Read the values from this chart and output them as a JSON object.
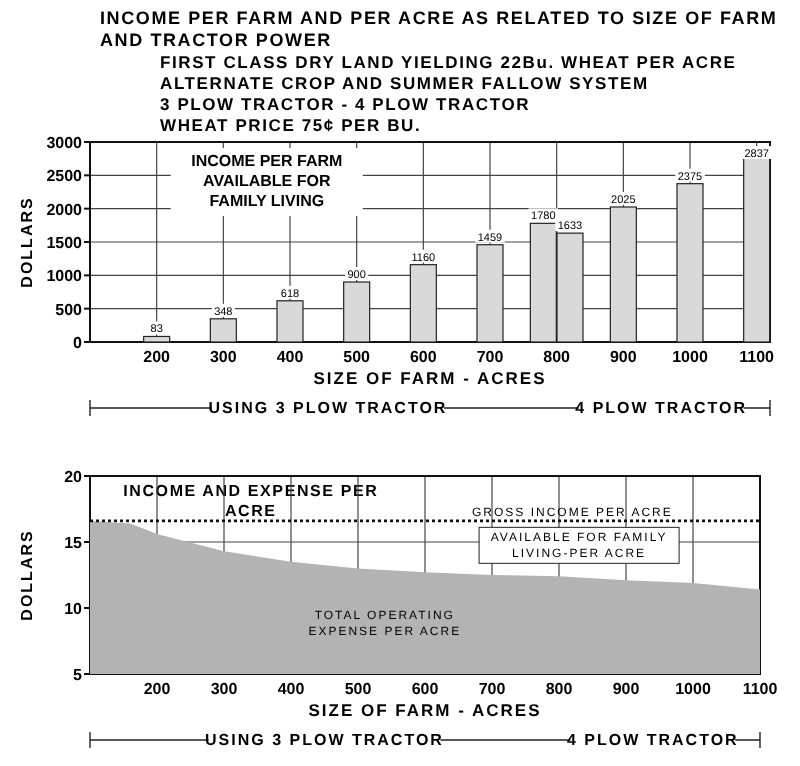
{
  "chart_data": [
    {
      "type": "bar",
      "title": "INCOME PER FARM AND PER ACRE AS RELATED TO SIZE OF FARM AND TRACTOR POWER",
      "subtitle": "FIRST CLASS DRY LAND  YIELDING 22Bu. WHEAT PER ACRE\nALTERNATE CROP AND SUMMER FALLOW SYSTEM\n3 PLOW TRACTOR - 4 PLOW TRACTOR\nWHEAT PRICE 75¢ PER BU.",
      "xlabel": "SIZE OF FARM - ACRES",
      "ylabel": "DOLLARS",
      "x": [
        200,
        300,
        400,
        500,
        600,
        700,
        780,
        820,
        900,
        1000,
        1100
      ],
      "series": [
        {
          "color": "#d9d9d9",
          "values": [
            83,
            348,
            618,
            900,
            1160,
            1459,
            1780,
            1633,
            2025,
            2375,
            2837
          ]
        }
      ],
      "data_labels": true,
      "xlim": [
        100,
        1120
      ],
      "xticks": [
        200,
        300,
        400,
        500,
        600,
        700,
        800,
        900,
        1000,
        1100
      ],
      "ylim": [
        0,
        3000
      ],
      "yticks": [
        0,
        500,
        1000,
        1500,
        2000,
        2500,
        3000
      ],
      "grid": true,
      "legend": false,
      "annotations": [
        "INCOME PER FARM AVAILABLE FOR FAMILY LIVING",
        "USING 3 PLOW TRACTOR",
        "4 PLOW TRACTOR"
      ]
    },
    {
      "type": "area",
      "title": "INCOME AND EXPENSE PER ACRE",
      "xlabel": "SIZE OF FARM - ACRES",
      "ylabel": "DOLLARS",
      "series": [
        {
          "name": "TOTAL OPERATING EXPENSE PER ACRE",
          "color": "#b3b3b3",
          "x": [
            100,
            160,
            200,
            300,
            400,
            500,
            600,
            700,
            800,
            900,
            1000,
            1100
          ],
          "values": [
            16.6,
            16.4,
            15.6,
            14.3,
            13.5,
            13.0,
            12.7,
            12.5,
            12.4,
            12.1,
            11.9,
            11.4
          ]
        },
        {
          "name": "GROSS INCOME PER ACRE",
          "type": "line",
          "color": "#111111",
          "x": [
            100,
            1100
          ],
          "values": [
            16.6,
            16.6
          ]
        }
      ],
      "line_style": "dotted",
      "xlim": [
        100,
        1100
      ],
      "xticks": [
        200,
        300,
        400,
        500,
        600,
        700,
        800,
        900,
        1000,
        1100
      ],
      "ylim": [
        5,
        20
      ],
      "yticks": [
        5,
        10,
        15,
        20
      ],
      "grid": true,
      "legend": false,
      "annotations": [
        "AVAILABLE FOR FAMILY LIVING-PER ACRE",
        "USING 3 PLOW TRACTOR",
        "4 PLOW TRACTOR"
      ]
    }
  ]
}
